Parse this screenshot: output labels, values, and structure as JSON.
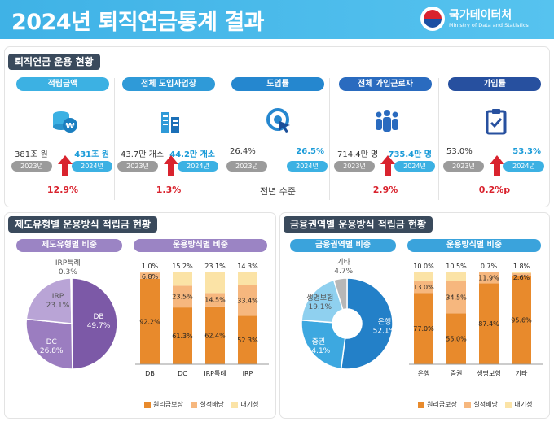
{
  "header": {
    "title": "2024년 퇴직연금통계 결과",
    "org": "국가데이터처",
    "org_sub": "Ministry of Data and Statistics"
  },
  "section1": {
    "title": "퇴직연금 운용 현황"
  },
  "kpis": [
    {
      "label": "적립금액",
      "v_prev": "381조 원",
      "v_curr": "431조 원",
      "y_prev": "2023년",
      "y_curr": "2024년",
      "change": "12.9%",
      "color": "#3cb1e3",
      "icon": "coin-stack-icon"
    },
    {
      "label": "전체 도입사업장",
      "v_prev": "43.7만 개소",
      "v_curr": "44.2만 개소",
      "y_prev": "2023년",
      "y_curr": "2024년",
      "change": "1.3%",
      "color": "#2f9ad8",
      "icon": "building-icon"
    },
    {
      "label": "도입률",
      "v_prev": "26.4%",
      "v_curr": "26.5%",
      "y_prev": "2023년",
      "y_curr": "2024년",
      "change": "전년 수준",
      "color": "#2587cf",
      "icon": "target-cursor-icon"
    },
    {
      "label": "전체 가입근로자",
      "v_prev": "714.4만 명",
      "v_curr": "735.4만 명",
      "y_prev": "2023년",
      "y_curr": "2024년",
      "change": "2.9%",
      "color": "#2a6bbf",
      "icon": "people-group-icon"
    },
    {
      "label": "가입률",
      "v_prev": "53.0%",
      "v_curr": "53.3%",
      "y_prev": "2023년",
      "y_curr": "2024년",
      "change": "0.2%p",
      "color": "#27509f",
      "icon": "clipboard-check-icon"
    }
  ],
  "section2": {
    "title": "제도유형별 운용방식 적립금 현황",
    "sub_pie": "제도유형별 비중",
    "sub_bar": "운용방식별 비중"
  },
  "section3": {
    "title": "금융권역별 운용방식 적립금 현황",
    "sub_pie": "금융권역별 비중",
    "sub_bar": "운용방식별 비중"
  },
  "legend": [
    "원리금보장",
    "실적배당",
    "대기성"
  ],
  "colors": {
    "guaranteed": "#e88a2c",
    "performance": "#f6b77e",
    "standby": "#fbe3a6",
    "pie1": [
      "#7c59a7",
      "#9b7dc0",
      "#b9a4d6",
      "#d9cfe9"
    ],
    "pie2": [
      "#2380c8",
      "#3da8e0",
      "#8fd0ef",
      "#b7b7b7"
    ]
  },
  "chart_data": [
    {
      "type": "pie",
      "title": "제도유형별 비중",
      "categories": [
        "DB",
        "DC",
        "IRP",
        "IRP특례"
      ],
      "values": [
        49.7,
        26.8,
        23.1,
        0.3
      ]
    },
    {
      "type": "bar",
      "title": "운용방식별 비중",
      "stacked": true,
      "categories": [
        "DB",
        "DC",
        "IRP특례",
        "IRP"
      ],
      "series": [
        {
          "name": "원리금보장",
          "values": [
            92.2,
            61.3,
            62.4,
            52.3
          ]
        },
        {
          "name": "실적배당",
          "values": [
            6.8,
            23.5,
            14.5,
            33.4
          ]
        },
        {
          "name": "대기성",
          "values": [
            1.0,
            15.2,
            23.1,
            14.3
          ]
        }
      ],
      "ylim": [
        0,
        100
      ]
    },
    {
      "type": "pie",
      "title": "금융권역별 비중",
      "categories": [
        "은행",
        "증권",
        "생명보험",
        "기타"
      ],
      "values": [
        52.1,
        24.1,
        19.1,
        4.7
      ]
    },
    {
      "type": "bar",
      "title": "운용방식별 비중",
      "stacked": true,
      "categories": [
        "은행",
        "증권",
        "생명보험",
        "기타"
      ],
      "series": [
        {
          "name": "원리금보장",
          "values": [
            77.0,
            55.0,
            87.4,
            95.6
          ]
        },
        {
          "name": "실적배당",
          "values": [
            13.0,
            34.5,
            11.9,
            2.6
          ]
        },
        {
          "name": "대기성",
          "values": [
            10.0,
            10.5,
            0.7,
            1.8
          ]
        }
      ],
      "ylim": [
        0,
        100
      ]
    }
  ]
}
